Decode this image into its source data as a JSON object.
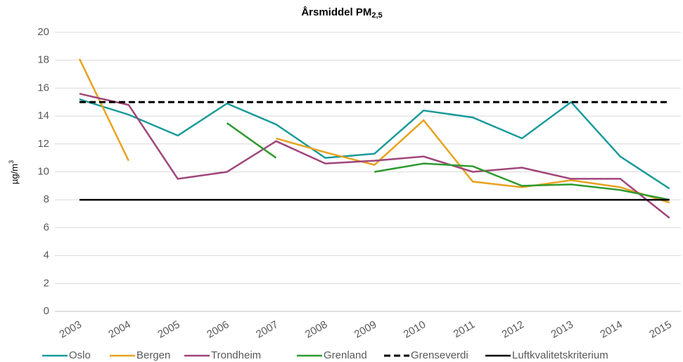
{
  "chart_data": {
    "type": "line",
    "title": "Årsmiddel PM",
    "title_subscript": "2,5",
    "y_label": "µg/m",
    "y_label_superscript": "3",
    "categories": [
      "2003",
      "2004",
      "2005",
      "2006",
      "2007",
      "2008",
      "2009",
      "2010",
      "2011",
      "2012",
      "2013",
      "2014",
      "2015"
    ],
    "series": [
      {
        "name": "Oslo",
        "color": "#1a9a9a",
        "values": [
          15.2,
          14.1,
          12.6,
          14.9,
          13.4,
          11.0,
          11.3,
          14.4,
          13.9,
          12.4,
          15.0,
          11.1,
          8.8
        ]
      },
      {
        "name": "Bergen",
        "color": "#e8a21f",
        "values": [
          18.1,
          10.8,
          null,
          null,
          12.4,
          11.4,
          10.5,
          13.7,
          9.3,
          8.9,
          9.4,
          8.9,
          7.8
        ]
      },
      {
        "name": "Trondheim",
        "color": "#a0457a",
        "values": [
          15.6,
          14.8,
          9.5,
          10.0,
          12.2,
          10.6,
          10.8,
          11.1,
          10.0,
          10.3,
          9.5,
          9.5,
          6.7
        ]
      },
      {
        "name": "Grenland",
        "color": "#2e9a2e",
        "values": [
          null,
          null,
          null,
          13.5,
          11.0,
          null,
          10.0,
          10.6,
          10.4,
          9.0,
          9.1,
          8.7,
          8.0
        ]
      },
      {
        "name": "Grenseverdi",
        "color": "#000000",
        "dashed": true,
        "values": [
          15,
          15,
          15,
          15,
          15,
          15,
          15,
          15,
          15,
          15,
          15,
          15,
          15
        ]
      },
      {
        "name": "Luftkvalitetskriterium",
        "color": "#000000",
        "values": [
          8,
          8,
          8,
          8,
          8,
          8,
          8,
          8,
          8,
          8,
          8,
          8,
          8
        ]
      }
    ],
    "ylim": [
      0,
      20
    ],
    "yticks": [
      0,
      2,
      4,
      6,
      8,
      10,
      12,
      14,
      16,
      18,
      20
    ],
    "grid": true,
    "legend": "bottom"
  }
}
